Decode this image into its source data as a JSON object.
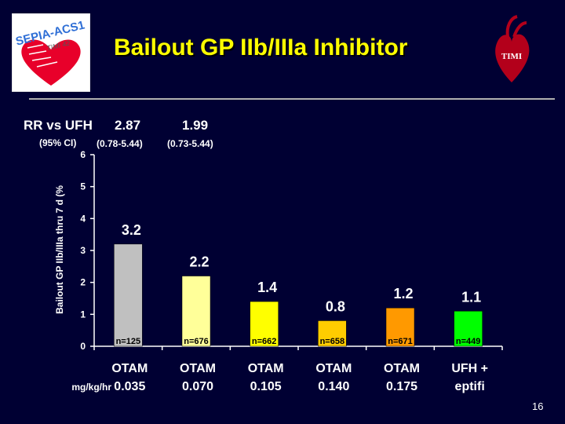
{
  "title": "Bailout GP IIb/IIIa Inhibitor",
  "logo_left": {
    "text": "SEPIA-ACS1",
    "subtext": "TIMI 42",
    "icon": "heart-logo-icon"
  },
  "logo_right": {
    "text": "TIMI",
    "icon": "heart-logo-icon"
  },
  "rr": {
    "label": "RR vs UFH",
    "value1": "2.87",
    "value2": "1.99"
  },
  "ci": {
    "label": "(95% CI)",
    "value1": "(0.78-5.44)",
    "value2": "(0.73-5.44)"
  },
  "slide_number": "16",
  "colors": {
    "background": "#000033",
    "title": "#ffff00"
  },
  "chart_data": {
    "type": "bar",
    "ylabel": "Bailout GP IIb/IIIa thru 7 d (%",
    "ylim": [
      0,
      6
    ],
    "yticks": [
      "0",
      "1",
      "2",
      "3",
      "4",
      "5",
      "6"
    ],
    "unit_label": "mg/kg/hr",
    "grid": false,
    "categories": [
      {
        "line1": "OTAM",
        "line2": "0.035"
      },
      {
        "line1": "OTAM",
        "line2": "0.070"
      },
      {
        "line1": "OTAM",
        "line2": "0.105"
      },
      {
        "line1": "OTAM",
        "line2": "0.140"
      },
      {
        "line1": "OTAM",
        "line2": "0.175"
      },
      {
        "line1": "UFH +",
        "line2": "eptifi"
      }
    ],
    "values": [
      3.2,
      2.2,
      1.4,
      0.8,
      1.2,
      1.1
    ],
    "value_labels": [
      "3.2",
      "2.2",
      "1.4",
      "0.8",
      "1.2",
      "1.1"
    ],
    "n_labels": [
      "n=125",
      "n=676",
      "n=662",
      "n=658",
      "n=671",
      "n=449"
    ],
    "bar_colors": [
      "#c0c0c0",
      "#ffff99",
      "#ffff00",
      "#ffcc00",
      "#ff9900",
      "#00ff00"
    ]
  }
}
